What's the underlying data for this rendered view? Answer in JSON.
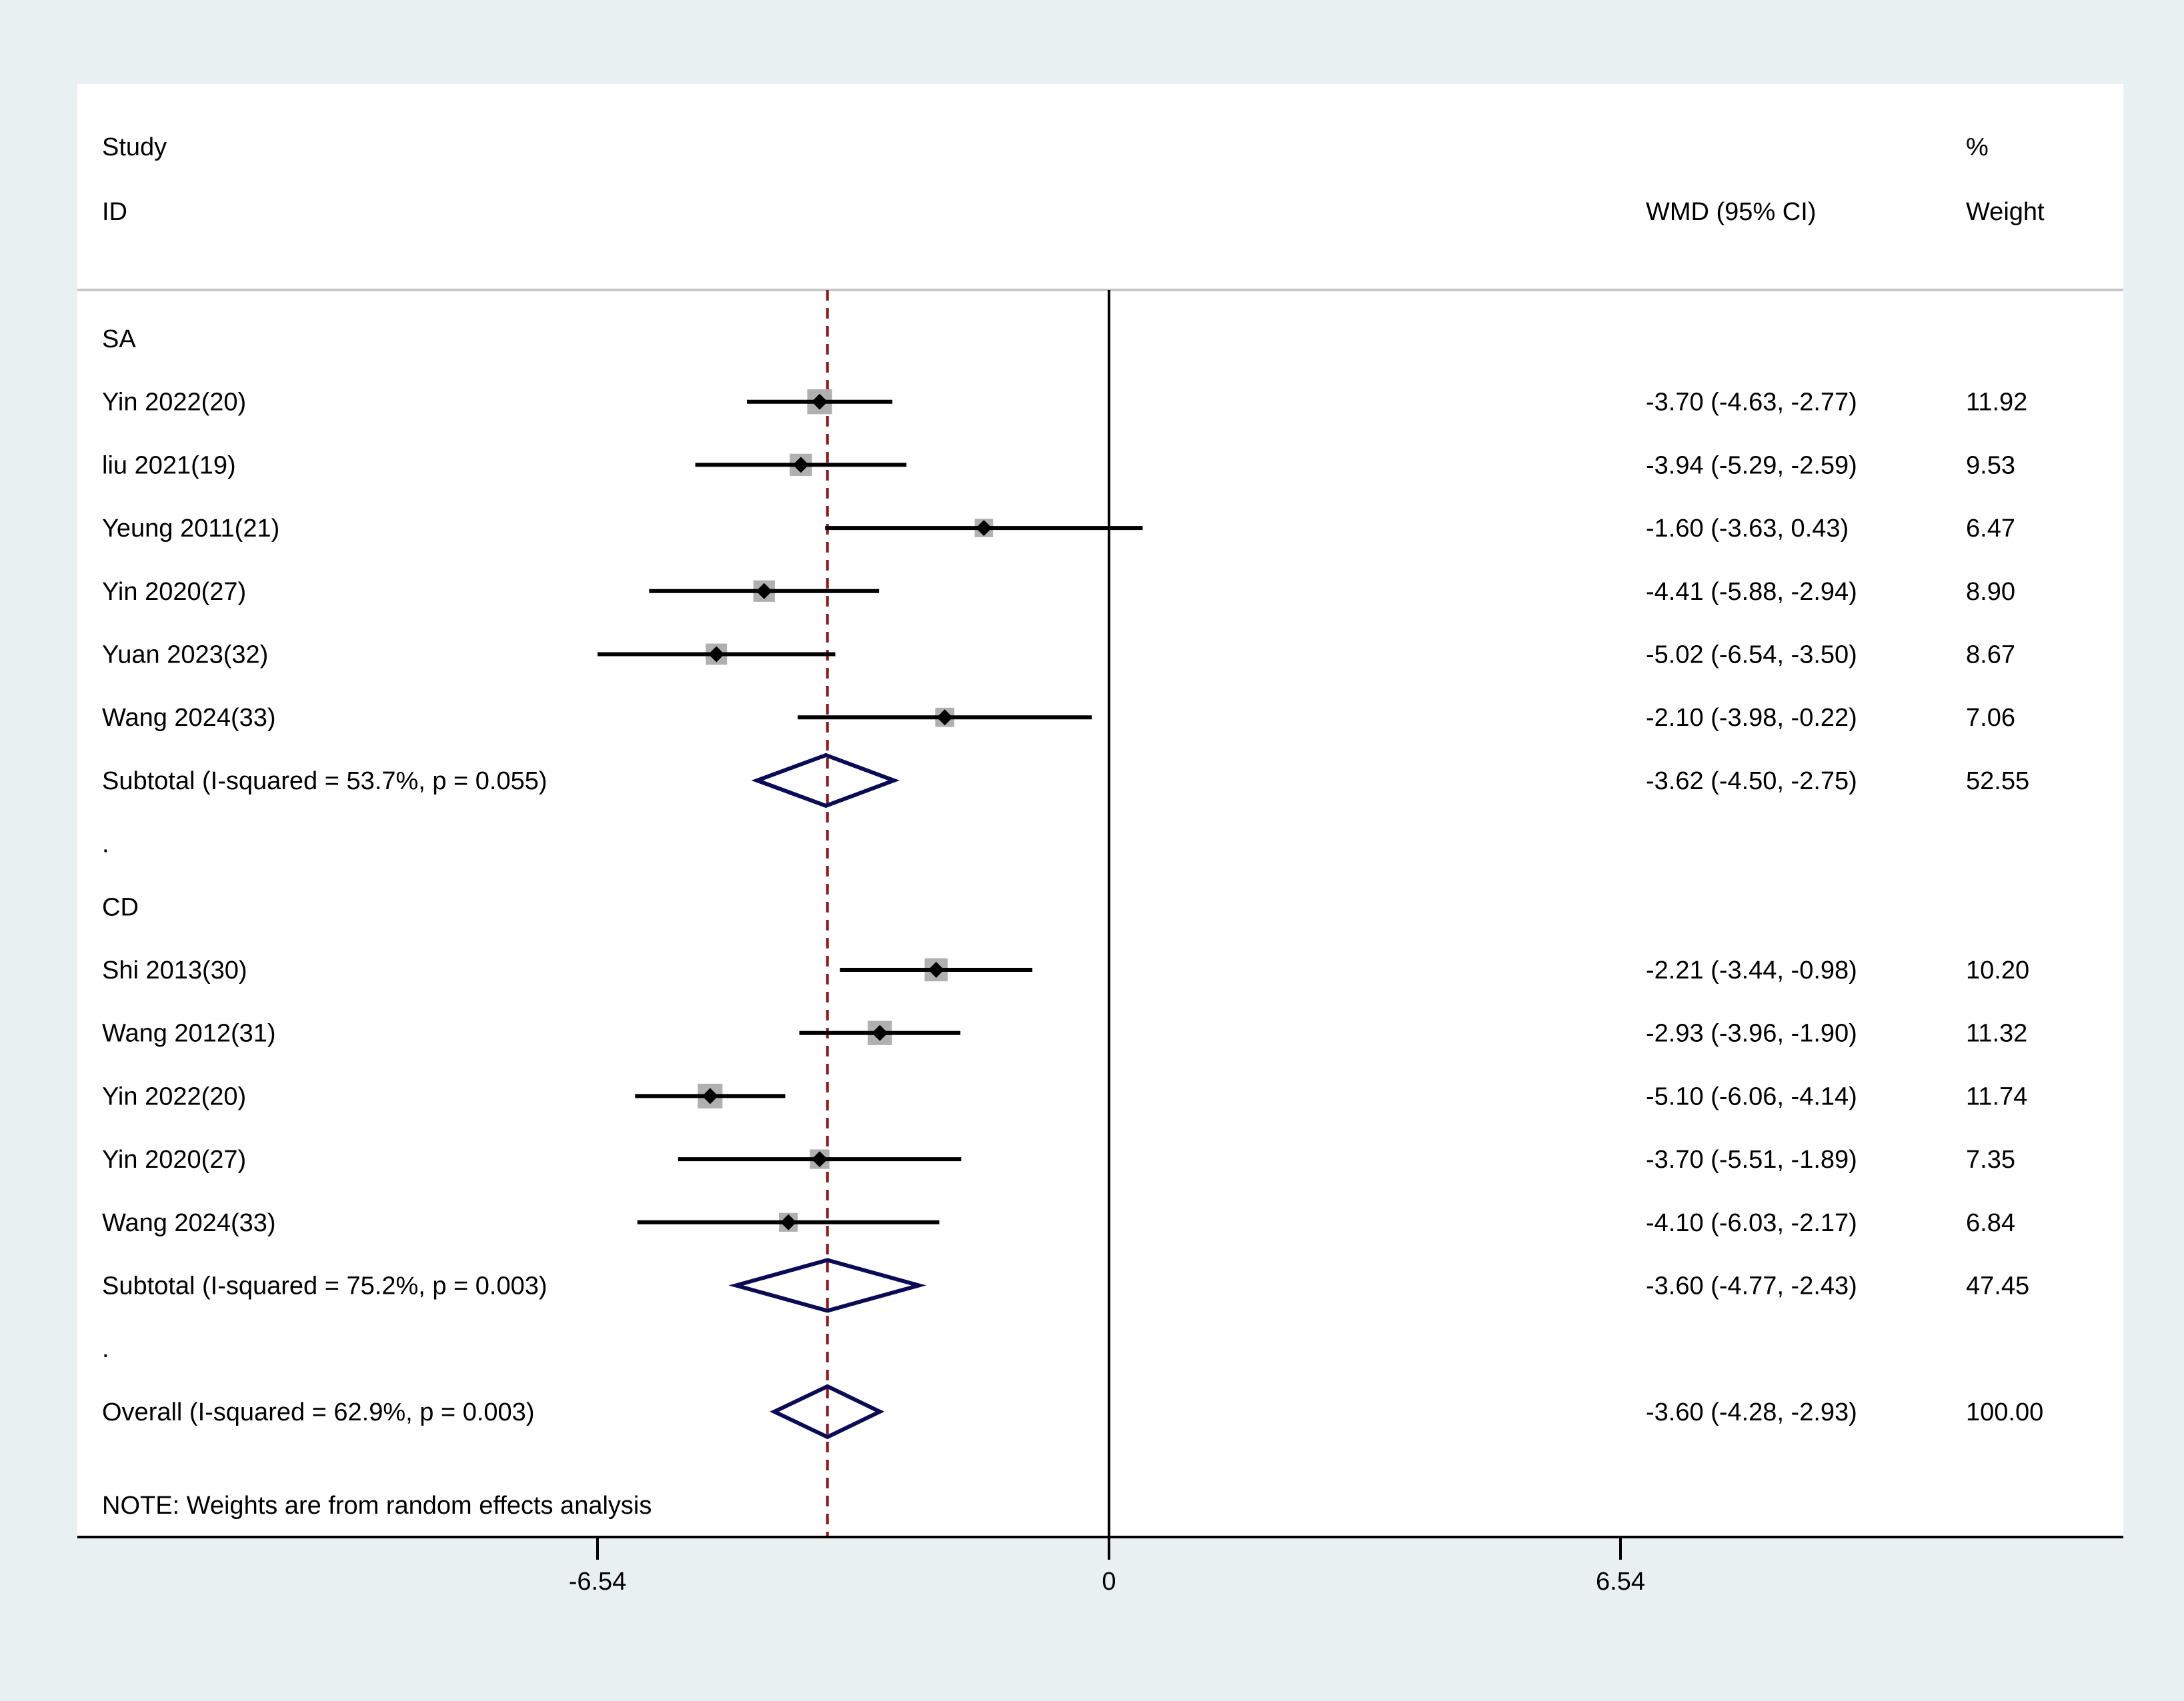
{
  "chart_data": {
    "type": "forest",
    "effect_measure": "WMD",
    "headers": {
      "study_line1": "Study",
      "study_line2": "ID",
      "effect": "WMD (95% CI)",
      "weight_line1": "%",
      "weight_line2": "Weight"
    },
    "x_ticks": [
      -6.54,
      0,
      6.54
    ],
    "x_tick_labels": [
      "-6.54",
      "0",
      "6.54"
    ],
    "xlim": [
      -13.08,
      13.08
    ],
    "overall_effect": -3.6,
    "colors": {
      "background": "#e9f0f2",
      "plot": "#ffffff",
      "diamond": "#0b0b55",
      "reference_line": "#8b2020",
      "weight_box": "#b0b0b0",
      "separator": "#c8c8c8"
    },
    "groups": [
      {
        "name": "SA",
        "studies": [
          {
            "label": "Yin 2022(20)",
            "estimate": -3.7,
            "lower": -4.63,
            "upper": -2.77,
            "ci_text": "-3.70 (-4.63, -2.77)",
            "weight": 11.92,
            "weight_text": "11.92"
          },
          {
            "label": "liu 2021(19)",
            "estimate": -3.94,
            "lower": -5.29,
            "upper": -2.59,
            "ci_text": "-3.94 (-5.29, -2.59)",
            "weight": 9.53,
            "weight_text": "9.53"
          },
          {
            "label": "Yeung 2011(21)",
            "estimate": -1.6,
            "lower": -3.63,
            "upper": 0.43,
            "ci_text": "-1.60 (-3.63, 0.43)",
            "weight": 6.47,
            "weight_text": "6.47"
          },
          {
            "label": "Yin 2020(27)",
            "estimate": -4.41,
            "lower": -5.88,
            "upper": -2.94,
            "ci_text": "-4.41 (-5.88, -2.94)",
            "weight": 8.9,
            "weight_text": "8.90"
          },
          {
            "label": "Yuan 2023(32)",
            "estimate": -5.02,
            "lower": -6.54,
            "upper": -3.5,
            "ci_text": "-5.02 (-6.54, -3.50)",
            "weight": 8.67,
            "weight_text": "8.67"
          },
          {
            "label": "Wang 2024(33)",
            "estimate": -2.1,
            "lower": -3.98,
            "upper": -0.22,
            "ci_text": "-2.10 (-3.98, -0.22)",
            "weight": 7.06,
            "weight_text": "7.06"
          }
        ],
        "subtotal": {
          "label": "Subtotal  (I-squared = 53.7%, p = 0.055)",
          "estimate": -3.62,
          "lower": -4.5,
          "upper": -2.75,
          "ci_text": "-3.62 (-4.50, -2.75)",
          "weight_text": "52.55"
        }
      },
      {
        "name": "CD",
        "studies": [
          {
            "label": "Shi 2013(30)",
            "estimate": -2.21,
            "lower": -3.44,
            "upper": -0.98,
            "ci_text": "-2.21 (-3.44, -0.98)",
            "weight": 10.2,
            "weight_text": "10.20"
          },
          {
            "label": "Wang 2012(31)",
            "estimate": -2.93,
            "lower": -3.96,
            "upper": -1.9,
            "ci_text": "-2.93 (-3.96, -1.90)",
            "weight": 11.32,
            "weight_text": "11.32"
          },
          {
            "label": "Yin 2022(20)",
            "estimate": -5.1,
            "lower": -6.06,
            "upper": -4.14,
            "ci_text": "-5.10 (-6.06, -4.14)",
            "weight": 11.74,
            "weight_text": "11.74"
          },
          {
            "label": "Yin 2020(27)",
            "estimate": -3.7,
            "lower": -5.51,
            "upper": -1.89,
            "ci_text": "-3.70 (-5.51, -1.89)",
            "weight": 7.35,
            "weight_text": "7.35"
          },
          {
            "label": "Wang 2024(33)",
            "estimate": -4.1,
            "lower": -6.03,
            "upper": -2.17,
            "ci_text": "-4.10 (-6.03, -2.17)",
            "weight": 6.84,
            "weight_text": "6.84"
          }
        ],
        "subtotal": {
          "label": "Subtotal  (I-squared = 75.2%, p = 0.003)",
          "estimate": -3.6,
          "lower": -4.77,
          "upper": -2.43,
          "ci_text": "-3.60 (-4.77, -2.43)",
          "weight_text": "47.45"
        }
      }
    ],
    "separator_text": ".",
    "overall": {
      "label": "Overall  (I-squared = 62.9%, p = 0.003)",
      "estimate": -3.6,
      "lower": -4.28,
      "upper": -2.93,
      "ci_text": "-3.60 (-4.28, -2.93)",
      "weight_text": "100.00"
    },
    "note": "NOTE: Weights are from random effects analysis"
  }
}
